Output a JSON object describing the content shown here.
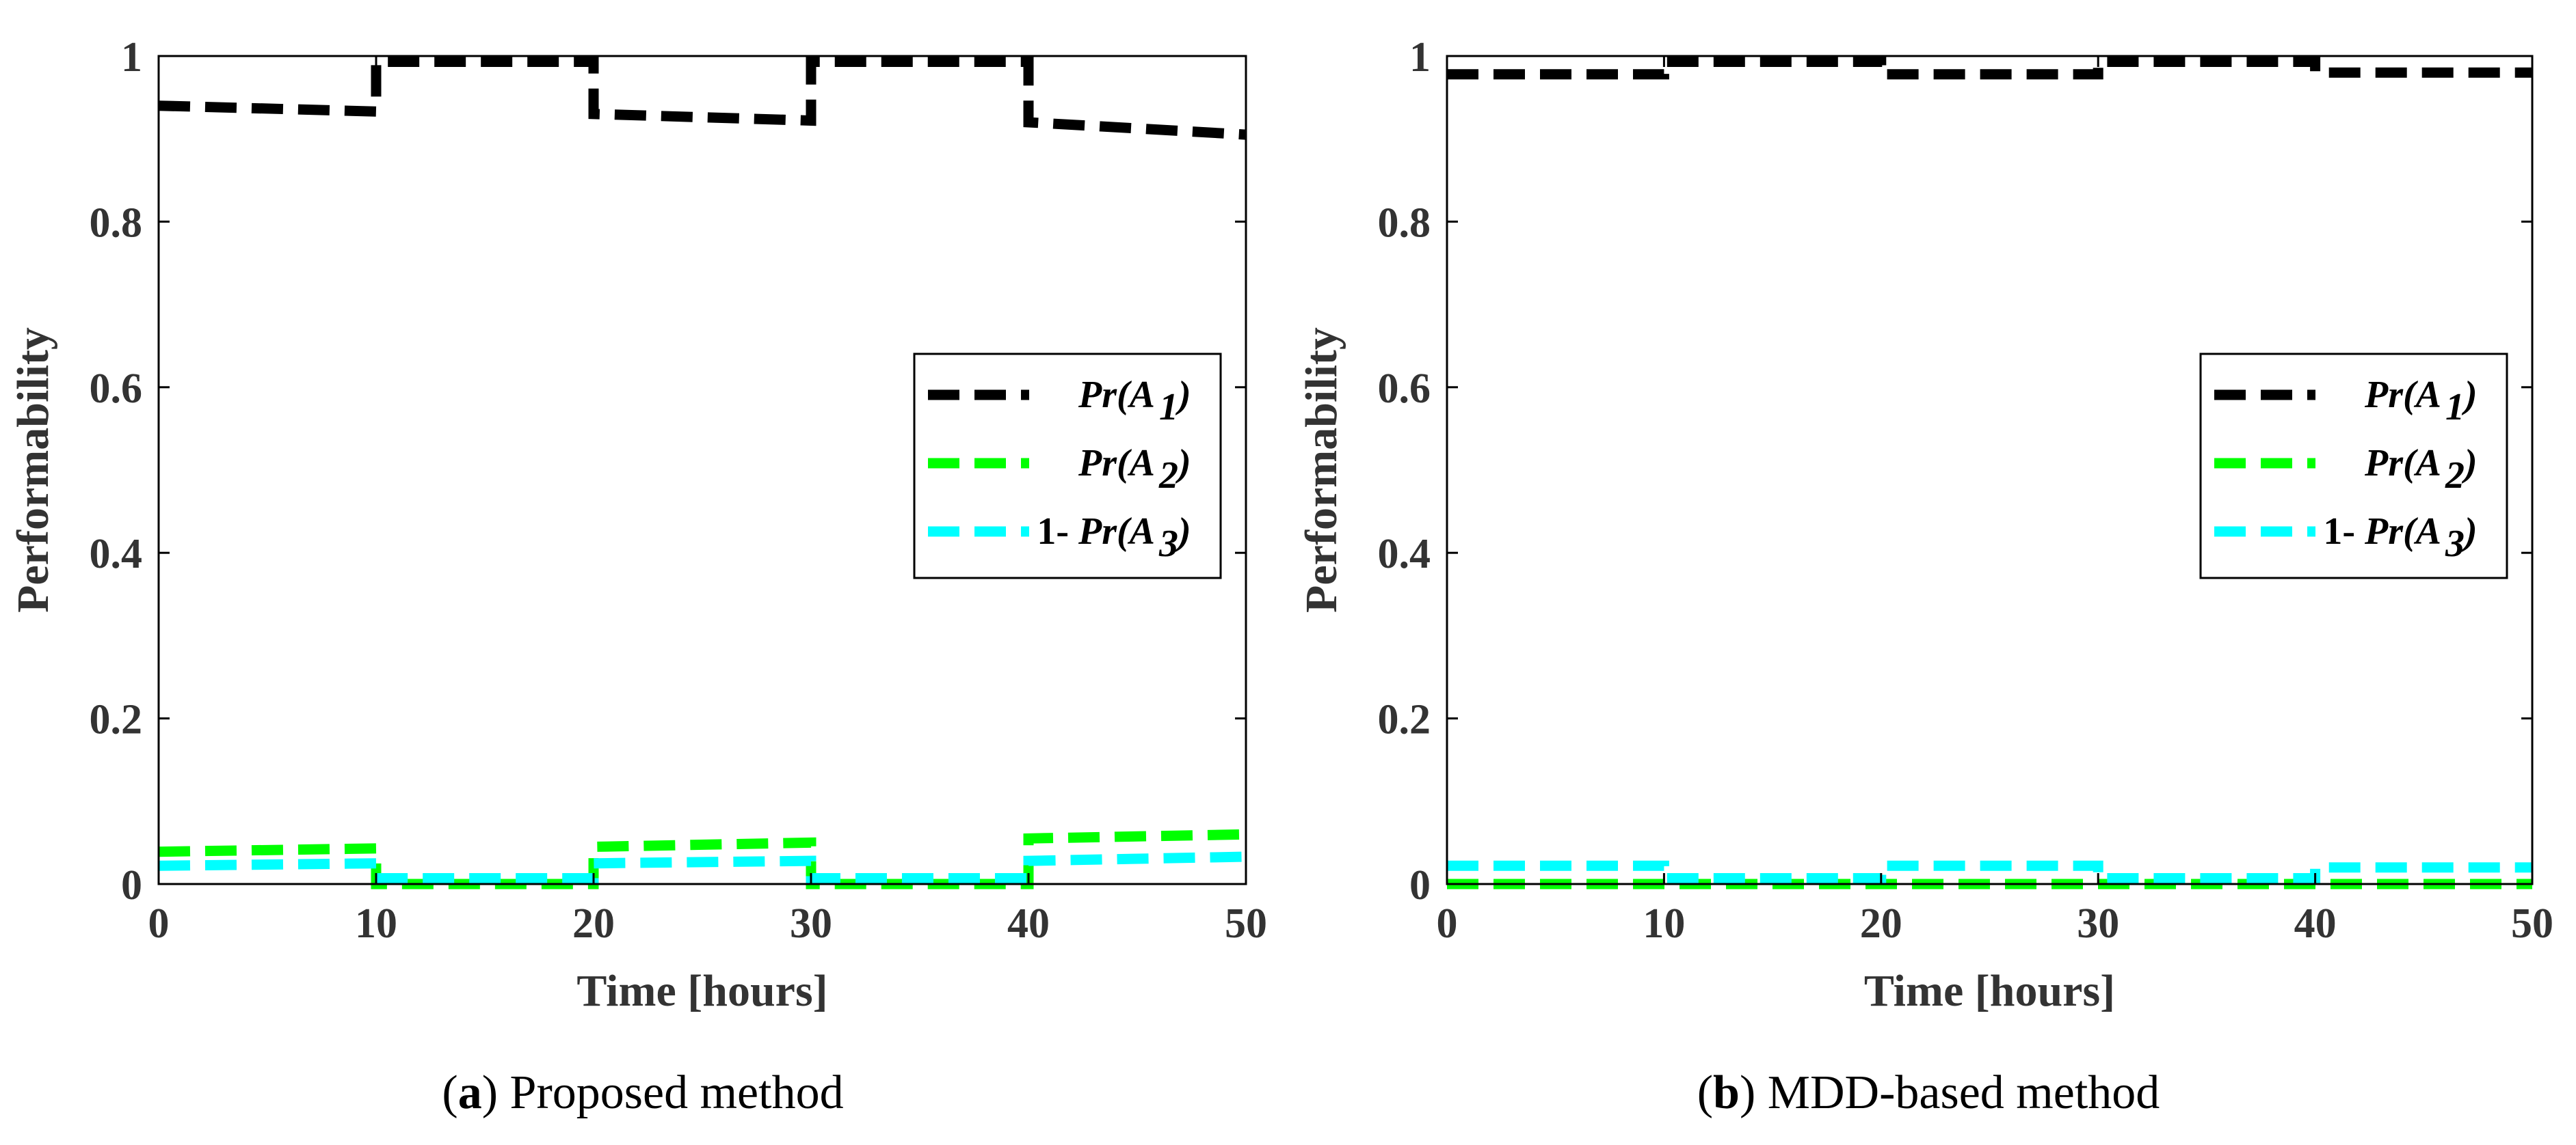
{
  "chart_data": [
    {
      "type": "line",
      "panel": "a",
      "caption_letter": "a",
      "caption_text": "Proposed method",
      "xlabel": "Time [hours]",
      "ylabel": "Performability",
      "xlim": [
        0,
        50
      ],
      "ylim": [
        0,
        1
      ],
      "xticks": [
        "0",
        "10",
        "20",
        "30",
        "40",
        "50"
      ],
      "yticks": [
        "0",
        "0.2",
        "0.4",
        "0.6",
        "0.8",
        "1"
      ],
      "grid": false,
      "legend_position": "center-right",
      "series": [
        {
          "name": "Pr(A1)",
          "label_main": "Pr(A",
          "label_sub": "1",
          "label_prefix": "",
          "color": "#000000",
          "x": [
            0,
            10,
            10,
            20,
            20,
            30,
            30,
            40,
            40,
            50
          ],
          "y": [
            0.94,
            0.933,
            0.993,
            0.993,
            0.93,
            0.922,
            0.993,
            0.993,
            0.92,
            0.905
          ]
        },
        {
          "name": "Pr(A2)",
          "label_main": "Pr(A",
          "label_sub": "2",
          "label_prefix": "",
          "color": "#00ff00",
          "x": [
            0,
            10,
            10,
            20,
            20,
            30,
            30,
            40,
            40,
            50
          ],
          "y": [
            0.039,
            0.043,
            0.0,
            0.0,
            0.045,
            0.05,
            0.0,
            0.0,
            0.055,
            0.06
          ]
        },
        {
          "name": "1- Pr(A3)",
          "label_main": "Pr(A",
          "label_sub": "3",
          "label_prefix": "1- ",
          "color": "#00ffff",
          "x": [
            0,
            10,
            10,
            20,
            20,
            30,
            30,
            40,
            40,
            50
          ],
          "y": [
            0.022,
            0.025,
            0.007,
            0.007,
            0.025,
            0.028,
            0.007,
            0.007,
            0.028,
            0.033
          ]
        }
      ]
    },
    {
      "type": "line",
      "panel": "b",
      "caption_letter": "b",
      "caption_text": "MDD-based method",
      "xlabel": "Time [hours]",
      "ylabel": "Performability",
      "xlim": [
        0,
        50
      ],
      "ylim": [
        0,
        1
      ],
      "xticks": [
        "0",
        "10",
        "20",
        "30",
        "40",
        "50"
      ],
      "yticks": [
        "0",
        "0.2",
        "0.4",
        "0.6",
        "0.8",
        "1"
      ],
      "grid": false,
      "legend_position": "center-right",
      "series": [
        {
          "name": "Pr(A1)",
          "label_main": "Pr(A",
          "label_sub": "1",
          "label_prefix": "",
          "color": "#000000",
          "x": [
            0,
            10,
            10,
            20,
            20,
            30,
            30,
            40,
            40,
            50
          ],
          "y": [
            0.978,
            0.978,
            0.993,
            0.993,
            0.978,
            0.978,
            0.993,
            0.993,
            0.98,
            0.98
          ]
        },
        {
          "name": "Pr(A2)",
          "label_main": "Pr(A",
          "label_sub": "2",
          "label_prefix": "",
          "color": "#00ff00",
          "x": [
            0,
            50
          ],
          "y": [
            0.0,
            0.0
          ]
        },
        {
          "name": "1- Pr(A3)",
          "label_main": "Pr(A",
          "label_sub": "3",
          "label_prefix": "1- ",
          "color": "#00ffff",
          "x": [
            0,
            10,
            10,
            20,
            20,
            30,
            30,
            40,
            40,
            50
          ],
          "y": [
            0.022,
            0.022,
            0.007,
            0.007,
            0.022,
            0.022,
            0.007,
            0.007,
            0.02,
            0.02
          ]
        }
      ]
    }
  ]
}
